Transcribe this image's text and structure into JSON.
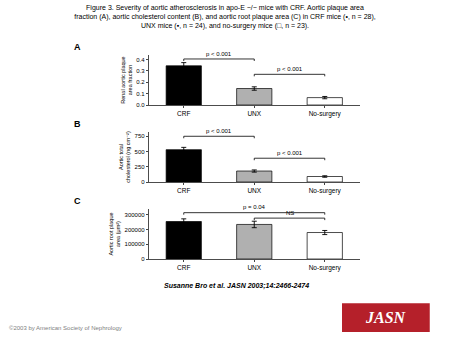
{
  "title": "Figure 3. Severity of aortic atherosclerosis in apo-E −/− mice with CRF. Aortic plaque area\nfraction (A), aortic cholesterol content (B), and aortic root plaque area (C) in CRF mice (•, n = 28),\nUNX mice (▪, n = 24), and no-surgery mice (□, n = 23).",
  "annotations": [
    {
      "text": "Susanne Bro et al. JASN 2003;14:2466-2474"
    },
    {
      "text": "©2003 by American Society of Nephrology"
    },
    {
      "text": "JASN",
      "color": "#b5202a"
    }
  ],
  "chart_data": [
    {
      "type": "bar",
      "title": "A",
      "ylabel": "Renal aortic plaque\narea fraction",
      "categories": [
        "CRF",
        "UNX",
        "No-surgery"
      ],
      "values": [
        0.345,
        0.145,
        0.065
      ],
      "errors": [
        0.028,
        0.015,
        0.01
      ],
      "colors": [
        "black",
        "#b0b0b0",
        "white"
      ],
      "ylim": [
        0,
        0.44
      ],
      "yticks": [
        {
          "value": 0.0,
          "label": "0.0"
        },
        0.1,
        0.2,
        0.3,
        0.4
      ],
      "grid": false,
      "annotations": [
        {
          "from": "CRF",
          "to": "UNX",
          "y": 0.405,
          "text": "p < 0.001"
        },
        {
          "from": "UNX",
          "to": "No-surgery",
          "y": 0.27,
          "text": "p < 0.001"
        }
      ]
    },
    {
      "type": "bar",
      "title": "B",
      "ylabel": "Aortic total\ncholesterol (ng cm⁻²)",
      "categories": [
        "CRF",
        "UNX",
        "No-surgery"
      ],
      "values": [
        530,
        180,
        90
      ],
      "errors": [
        38,
        18,
        12
      ],
      "colors": [
        "black",
        "#b0b0b0",
        "white"
      ],
      "ylim": [
        0,
        820
      ],
      "yticks": [
        0,
        250,
        500,
        750
      ],
      "grid": false,
      "annotations": [
        {
          "from": "CRF",
          "to": "UNX",
          "y": 750,
          "text": "p < 0.001"
        },
        {
          "from": "UNX",
          "to": "No-surgery",
          "y": 390,
          "text": "p < 0.001"
        }
      ]
    },
    {
      "type": "bar",
      "title": "C",
      "ylabel": "Aortic root plaque\narea (μm²)",
      "categories": [
        "CRF",
        "UNX",
        "No-surgery"
      ],
      "values": [
        255000,
        235000,
        180000
      ],
      "errors": [
        18000,
        22000,
        14000
      ],
      "colors": [
        "black",
        "#b0b0b0",
        "white"
      ],
      "ylim": [
        0,
        340000
      ],
      "yticks": [
        0,
        100000,
        200000,
        300000
      ],
      "grid": false,
      "annotations": [
        {
          "from": "CRF",
          "to": "No-surgery",
          "y": 315000,
          "text": "p = 0.04"
        },
        {
          "from": "UNX",
          "to": "No-surgery",
          "y": 278000,
          "text": "NS"
        }
      ]
    }
  ]
}
